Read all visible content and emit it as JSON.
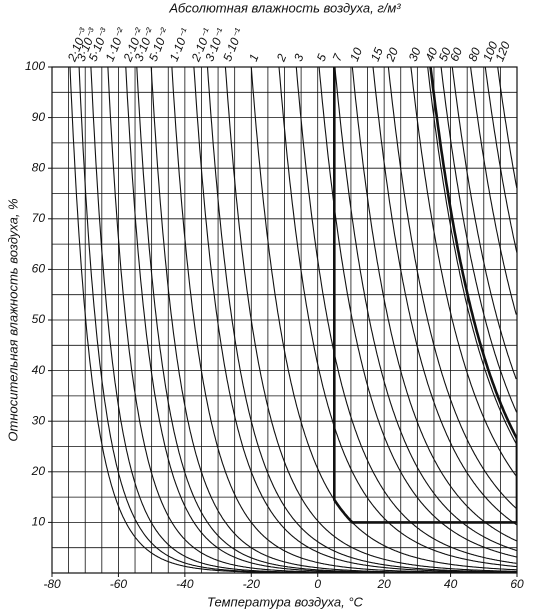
{
  "chart_data": {
    "type": "humidity-chart",
    "title": "Абсолютная влажность воздуха, г/м³",
    "xlabel": "Температура воздуха, °C",
    "ylabel": "Относительная влажность воздуха, %",
    "xlim": [
      -80,
      60
    ],
    "xticks": [
      -80,
      -60,
      -40,
      -20,
      0,
      20,
      40,
      60
    ],
    "xgrid_step": 5,
    "ylim": [
      0,
      100
    ],
    "yticks": [
      10,
      20,
      30,
      40,
      50,
      60,
      70,
      80,
      90,
      100
    ],
    "ygrid_step": 5,
    "grid": true,
    "color": "#111111",
    "series": [
      {
        "name": "2·10⁻³",
        "value": 0.002
      },
      {
        "name": "3·10⁻³",
        "value": 0.003
      },
      {
        "name": "5·10⁻³",
        "value": 0.005
      },
      {
        "name": "1·10⁻²",
        "value": 0.01
      },
      {
        "name": "2·10⁻²",
        "value": 0.02
      },
      {
        "name": "3·10⁻²",
        "value": 0.03
      },
      {
        "name": "5·10⁻²",
        "value": 0.05
      },
      {
        "name": "1·10⁻¹",
        "value": 0.1
      },
      {
        "name": "2·10⁻¹",
        "value": 0.2
      },
      {
        "name": "3·10⁻¹",
        "value": 0.3
      },
      {
        "name": "5·10⁻¹",
        "value": 0.5
      },
      {
        "name": "1",
        "value": 1
      },
      {
        "name": "2",
        "value": 2
      },
      {
        "name": "3",
        "value": 3
      },
      {
        "name": "5",
        "value": 5
      },
      {
        "name": "7",
        "value": 7
      },
      {
        "name": "10",
        "value": 10
      },
      {
        "name": "15",
        "value": 15
      },
      {
        "name": "20",
        "value": 20
      },
      {
        "name": "30",
        "value": 30
      },
      {
        "name": "40",
        "value": 40
      },
      {
        "name": "50",
        "value": 50
      },
      {
        "name": "60",
        "value": 60
      },
      {
        "name": "80",
        "value": 80
      },
      {
        "name": "100",
        "value": 100
      },
      {
        "name": "120",
        "value": 120
      }
    ],
    "boundary": {
      "tmin": 5,
      "tmax": 60,
      "rhmin": 10,
      "abs_low": 1,
      "abs_high": 42
    }
  }
}
